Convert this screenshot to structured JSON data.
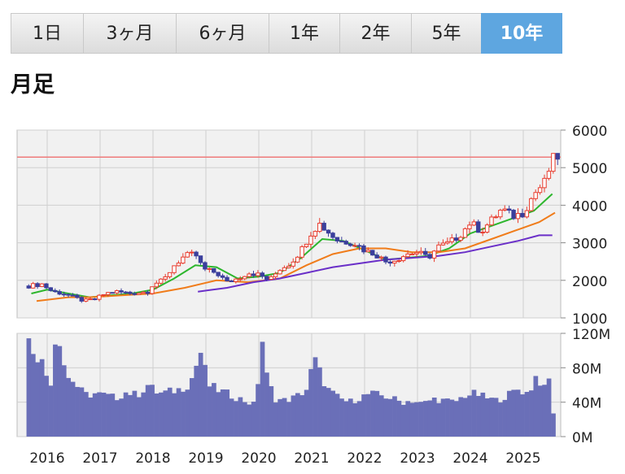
{
  "tabs": [
    {
      "label": "1日",
      "active": false
    },
    {
      "label": "3ヶ月",
      "active": false
    },
    {
      "label": "6ヶ月",
      "active": false
    },
    {
      "label": "1年",
      "active": false
    },
    {
      "label": "2年",
      "active": false
    },
    {
      "label": "5年",
      "active": false
    },
    {
      "label": "10年",
      "active": true
    }
  ],
  "heading": "月足",
  "colors": {
    "up": "#e83c2e",
    "down": "#3a3f9c",
    "ma_short": "#2db62d",
    "ma_mid": "#f07c1a",
    "ma_long": "#6a2fc8",
    "ref_line": "#ef7a7a",
    "volume": "#6a6fb8",
    "plot_bg": "#f1f1f1",
    "grid": "#cfcfcf",
    "tab_active": "#5ea6e0"
  },
  "chart_data": [
    {
      "type": "candlestick",
      "ylim": [
        1000,
        6000
      ],
      "y_ticks": [
        "6000",
        "5000",
        "4000",
        "3000",
        "2000",
        "1000"
      ],
      "x_ticks": [
        "2016",
        "2017",
        "2018",
        "2019",
        "2020",
        "2021",
        "2022",
        "2023",
        "2024",
        "2025"
      ],
      "reference_line": 5280,
      "close_path": [
        [
          2015.65,
          1850
        ],
        [
          2015.9,
          1900
        ],
        [
          2016.1,
          1700
        ],
        [
          2016.3,
          1650
        ],
        [
          2016.5,
          1550
        ],
        [
          2016.7,
          1450
        ],
        [
          2016.9,
          1500
        ],
        [
          2017.1,
          1650
        ],
        [
          2017.3,
          1700
        ],
        [
          2017.6,
          1650
        ],
        [
          2017.9,
          1700
        ],
        [
          2018.0,
          1900
        ],
        [
          2018.2,
          2000
        ],
        [
          2018.4,
          2400
        ],
        [
          2018.6,
          2650
        ],
        [
          2018.8,
          2700
        ],
        [
          2018.95,
          2300
        ],
        [
          2019.2,
          2200
        ],
        [
          2019.4,
          1950
        ],
        [
          2019.6,
          2050
        ],
        [
          2019.8,
          2200
        ],
        [
          2020.0,
          2150
        ],
        [
          2020.2,
          2000
        ],
        [
          2020.4,
          2300
        ],
        [
          2020.6,
          2450
        ],
        [
          2020.8,
          2800
        ],
        [
          2021.0,
          3300
        ],
        [
          2021.15,
          3500
        ],
        [
          2021.3,
          3300
        ],
        [
          2021.5,
          3050
        ],
        [
          2021.8,
          3000
        ],
        [
          2022.0,
          2800
        ],
        [
          2022.2,
          2700
        ],
        [
          2022.4,
          2500
        ],
        [
          2022.6,
          2550
        ],
        [
          2022.8,
          2700
        ],
        [
          2023.0,
          2750
        ],
        [
          2023.2,
          2600
        ],
        [
          2023.4,
          2900
        ],
        [
          2023.6,
          3000
        ],
        [
          2023.8,
          3200
        ],
        [
          2024.0,
          3550
        ],
        [
          2024.2,
          3300
        ],
        [
          2024.4,
          3600
        ],
        [
          2024.6,
          3900
        ],
        [
          2024.8,
          3700
        ],
        [
          2025.0,
          3800
        ],
        [
          2025.2,
          4300
        ],
        [
          2025.4,
          4600
        ],
        [
          2025.55,
          5200
        ],
        [
          2025.62,
          5300
        ]
      ],
      "moving_averages": [
        {
          "points": [
            [
              2015.7,
              1650
            ],
            [
              2016.0,
              1750
            ],
            [
              2016.4,
              1650
            ],
            [
              2016.8,
              1550
            ],
            [
              2017.2,
              1600
            ],
            [
              2017.6,
              1650
            ],
            [
              2018.0,
              1750
            ],
            [
              2018.4,
              2050
            ],
            [
              2018.8,
              2400
            ],
            [
              2019.2,
              2350
            ],
            [
              2019.6,
              2050
            ],
            [
              2020.0,
              2100
            ],
            [
              2020.4,
              2200
            ],
            [
              2020.8,
              2600
            ],
            [
              2021.2,
              3100
            ],
            [
              2021.6,
              3050
            ],
            [
              2022.0,
              2800
            ],
            [
              2022.4,
              2550
            ],
            [
              2022.8,
              2600
            ],
            [
              2023.2,
              2650
            ],
            [
              2023.6,
              2850
            ],
            [
              2024.0,
              3250
            ],
            [
              2024.4,
              3450
            ],
            [
              2024.8,
              3650
            ],
            [
              2025.2,
              3850
            ],
            [
              2025.55,
              4300
            ]
          ]
        },
        {
          "points": [
            [
              2015.8,
              1450
            ],
            [
              2016.4,
              1550
            ],
            [
              2016.8,
              1550
            ],
            [
              2017.4,
              1600
            ],
            [
              2018.0,
              1650
            ],
            [
              2018.6,
              1800
            ],
            [
              2019.2,
              2000
            ],
            [
              2019.8,
              1950
            ],
            [
              2020.4,
              2050
            ],
            [
              2020.9,
              2400
            ],
            [
              2021.4,
              2700
            ],
            [
              2021.9,
              2850
            ],
            [
              2022.4,
              2850
            ],
            [
              2022.9,
              2750
            ],
            [
              2023.4,
              2750
            ],
            [
              2023.9,
              2850
            ],
            [
              2024.4,
              3100
            ],
            [
              2024.9,
              3350
            ],
            [
              2025.3,
              3550
            ],
            [
              2025.6,
              3800
            ]
          ]
        },
        {
          "points": [
            [
              2018.85,
              1700
            ],
            [
              2019.4,
              1800
            ],
            [
              2019.9,
              1950
            ],
            [
              2020.4,
              2050
            ],
            [
              2020.9,
              2200
            ],
            [
              2021.4,
              2350
            ],
            [
              2021.9,
              2450
            ],
            [
              2022.4,
              2550
            ],
            [
              2022.9,
              2600
            ],
            [
              2023.4,
              2650
            ],
            [
              2023.9,
              2750
            ],
            [
              2024.4,
              2900
            ],
            [
              2024.9,
              3050
            ],
            [
              2025.3,
              3200
            ],
            [
              2025.55,
              3200
            ]
          ]
        }
      ]
    },
    {
      "type": "bar",
      "ylim": [
        0,
        120
      ],
      "y_ticks": [
        "120M",
        "80M",
        "40M",
        "0M"
      ],
      "volume_path": [
        [
          2015.65,
          110
        ],
        [
          2015.85,
          92
        ],
        [
          2015.95,
          80
        ],
        [
          2016.05,
          55
        ],
        [
          2016.15,
          112
        ],
        [
          2016.25,
          115
        ],
        [
          2016.35,
          70
        ],
        [
          2016.5,
          65
        ],
        [
          2016.6,
          55
        ],
        [
          2016.75,
          48
        ],
        [
          2016.9,
          50
        ],
        [
          2017.1,
          48
        ],
        [
          2017.3,
          45
        ],
        [
          2017.5,
          52
        ],
        [
          2017.7,
          48
        ],
        [
          2017.9,
          60
        ],
        [
          2018.1,
          50
        ],
        [
          2018.3,
          52
        ],
        [
          2018.5,
          55
        ],
        [
          2018.7,
          62
        ],
        [
          2018.9,
          98
        ],
        [
          2019.05,
          60
        ],
        [
          2019.2,
          55
        ],
        [
          2019.4,
          50
        ],
        [
          2019.6,
          45
        ],
        [
          2019.8,
          40
        ],
        [
          2019.95,
          36
        ],
        [
          2020.05,
          120
        ],
        [
          2020.15,
          70
        ],
        [
          2020.3,
          44
        ],
        [
          2020.5,
          42
        ],
        [
          2020.7,
          46
        ],
        [
          2020.9,
          55
        ],
        [
          2021.05,
          90
        ],
        [
          2021.15,
          75
        ],
        [
          2021.3,
          55
        ],
        [
          2021.5,
          45
        ],
        [
          2021.7,
          40
        ],
        [
          2021.9,
          45
        ],
        [
          2022.1,
          50
        ],
        [
          2022.3,
          48
        ],
        [
          2022.5,
          45
        ],
        [
          2022.7,
          40
        ],
        [
          2022.9,
          42
        ],
        [
          2023.1,
          38
        ],
        [
          2023.3,
          44
        ],
        [
          2023.5,
          42
        ],
        [
          2023.7,
          40
        ],
        [
          2023.9,
          48
        ],
        [
          2024.1,
          50
        ],
        [
          2024.3,
          45
        ],
        [
          2024.5,
          42
        ],
        [
          2024.7,
          48
        ],
        [
          2024.9,
          55
        ],
        [
          2025.1,
          50
        ],
        [
          2025.25,
          72
        ],
        [
          2025.4,
          55
        ],
        [
          2025.5,
          68
        ],
        [
          2025.58,
          20
        ]
      ]
    }
  ]
}
